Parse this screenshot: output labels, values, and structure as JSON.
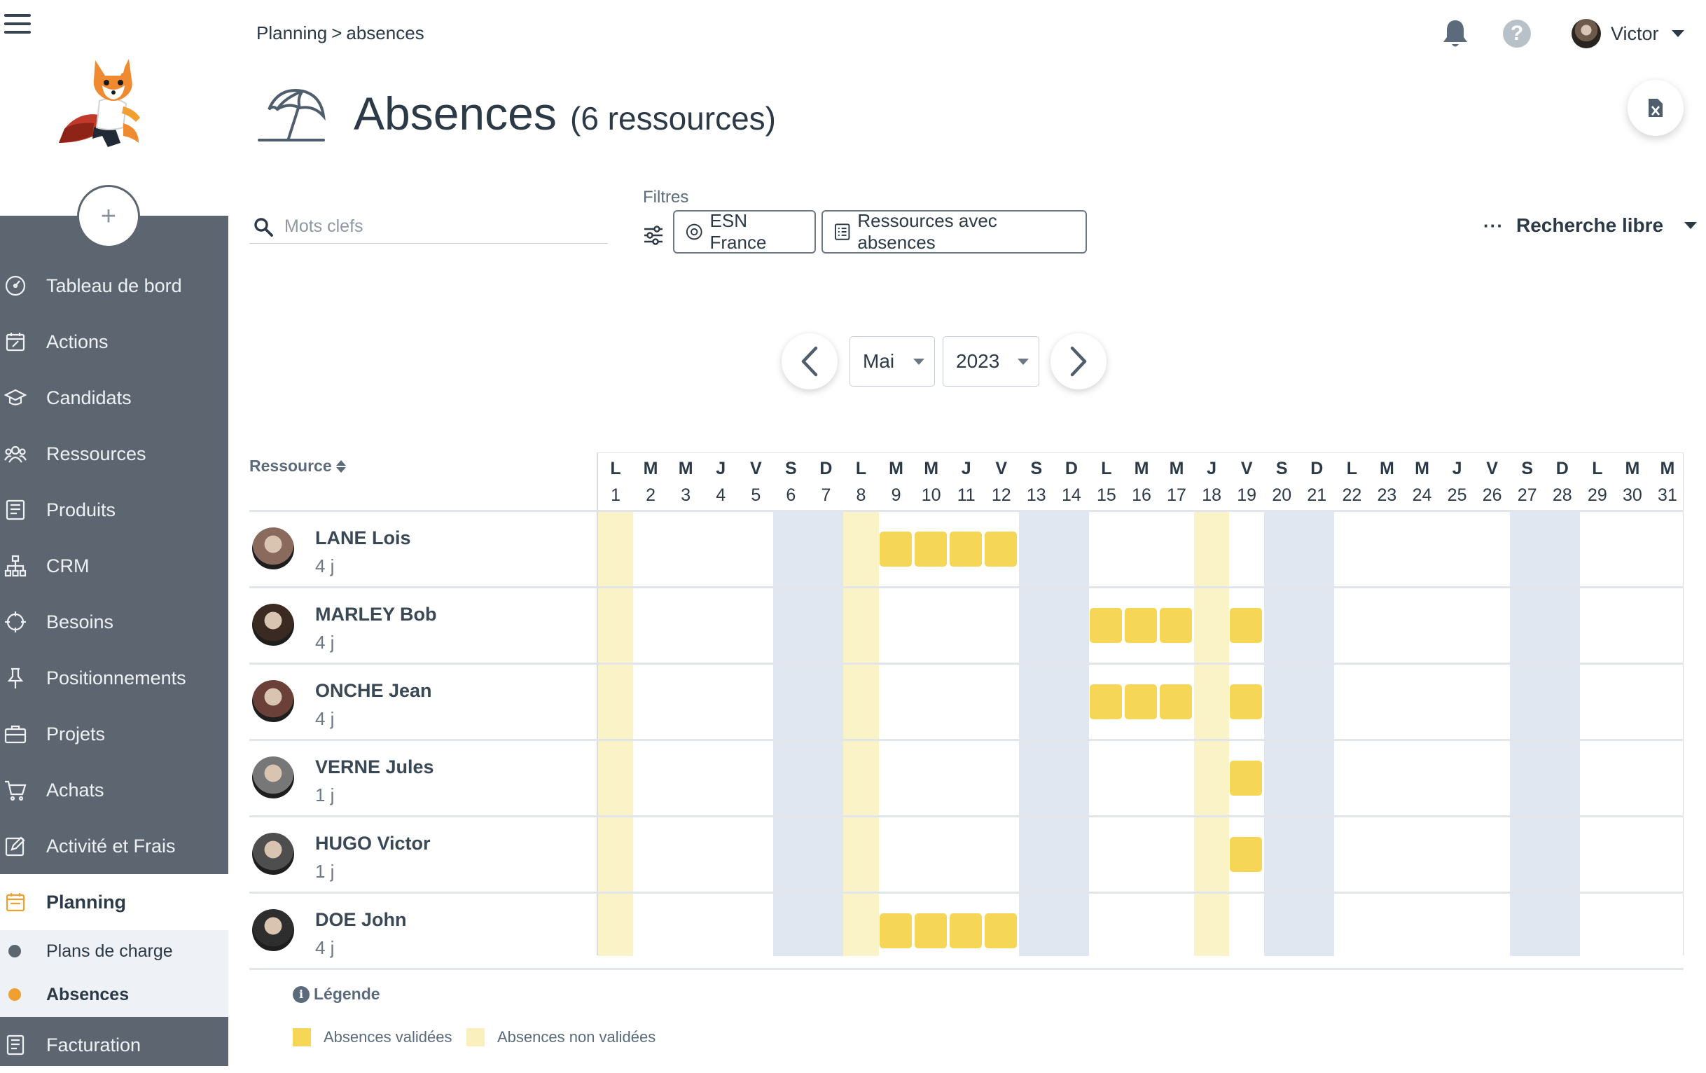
{
  "sidebar": {
    "items": [
      {
        "label": "Tableau de bord",
        "icon": "dashboard-icon"
      },
      {
        "label": "Actions",
        "icon": "calendar-edit-icon"
      },
      {
        "label": "Candidats",
        "icon": "graduation-cap-icon"
      },
      {
        "label": "Ressources",
        "icon": "users-icon"
      },
      {
        "label": "Produits",
        "icon": "book-icon"
      },
      {
        "label": "CRM",
        "icon": "org-chart-icon"
      },
      {
        "label": "Besoins",
        "icon": "crosshair-icon"
      },
      {
        "label": "Positionnements",
        "icon": "pin-icon"
      },
      {
        "label": "Projets",
        "icon": "briefcase-icon"
      },
      {
        "label": "Achats",
        "icon": "cart-icon"
      },
      {
        "label": "Activité et Frais",
        "icon": "edit-icon"
      }
    ],
    "active": {
      "label": "Planning",
      "icon": "planning-icon"
    },
    "subitems": [
      {
        "label": "Plans de charge",
        "dot_color": "#5d6670"
      },
      {
        "label": "Absences",
        "dot_color": "#f0a030"
      }
    ],
    "after": {
      "label": "Facturation",
      "icon": "invoice-icon"
    }
  },
  "header": {
    "breadcrumb": [
      "Planning",
      ">",
      "absences"
    ],
    "user_name": "Victor",
    "help": "?"
  },
  "page": {
    "title": "Absences",
    "subtitle": "(6 ressources)"
  },
  "filters": {
    "search_placeholder": "Mots clefs",
    "label": "Filtres",
    "chips": [
      "ESN France",
      "Ressources avec absences"
    ],
    "free_search_dots": "···",
    "free_search": "Recherche libre"
  },
  "nav": {
    "month": "Mai",
    "year": "2023"
  },
  "calendar": {
    "resource_header": "Ressource",
    "days": [
      {
        "n": "1",
        "l": "L"
      },
      {
        "n": "2",
        "l": "M"
      },
      {
        "n": "3",
        "l": "M"
      },
      {
        "n": "4",
        "l": "J"
      },
      {
        "n": "5",
        "l": "V"
      },
      {
        "n": "6",
        "l": "S"
      },
      {
        "n": "7",
        "l": "D"
      },
      {
        "n": "8",
        "l": "L"
      },
      {
        "n": "9",
        "l": "M"
      },
      {
        "n": "10",
        "l": "M"
      },
      {
        "n": "11",
        "l": "J"
      },
      {
        "n": "12",
        "l": "V"
      },
      {
        "n": "13",
        "l": "S"
      },
      {
        "n": "14",
        "l": "D"
      },
      {
        "n": "15",
        "l": "L"
      },
      {
        "n": "16",
        "l": "M"
      },
      {
        "n": "17",
        "l": "M"
      },
      {
        "n": "18",
        "l": "J"
      },
      {
        "n": "19",
        "l": "V"
      },
      {
        "n": "20",
        "l": "S"
      },
      {
        "n": "21",
        "l": "D"
      },
      {
        "n": "22",
        "l": "L"
      },
      {
        "n": "23",
        "l": "M"
      },
      {
        "n": "24",
        "l": "M"
      },
      {
        "n": "25",
        "l": "J"
      },
      {
        "n": "26",
        "l": "V"
      },
      {
        "n": "27",
        "l": "S"
      },
      {
        "n": "28",
        "l": "D"
      },
      {
        "n": "29",
        "l": "L"
      },
      {
        "n": "30",
        "l": "M"
      },
      {
        "n": "31",
        "l": "M"
      }
    ],
    "holidays": [
      1,
      8,
      18
    ],
    "weekends": [
      6,
      7,
      13,
      14,
      20,
      21,
      27,
      28
    ],
    "resources": [
      {
        "name": "LANE Lois",
        "days": "4 j",
        "absences": [
          9,
          10,
          11,
          12
        ],
        "avatar_color": "#8a6a5c"
      },
      {
        "name": "MARLEY Bob",
        "days": "4 j",
        "absences": [
          15,
          16,
          17,
          19
        ],
        "avatar_color": "#3a2a22"
      },
      {
        "name": "ONCHE Jean",
        "days": "4 j",
        "absences": [
          15,
          16,
          17,
          19
        ],
        "avatar_color": "#6a4038"
      },
      {
        "name": "VERNE Jules",
        "days": "1 j",
        "absences": [
          19
        ],
        "avatar_color": "#777777"
      },
      {
        "name": "HUGO Victor",
        "days": "1 j",
        "absences": [
          19
        ],
        "avatar_color": "#4e4e4e"
      },
      {
        "name": "DOE John",
        "days": "4 j",
        "absences": [
          9,
          10,
          11,
          12
        ],
        "avatar_color": "#2e2e2e"
      }
    ]
  },
  "legend": {
    "title": "Légende",
    "info": "i",
    "items": [
      {
        "label": "Absences validées",
        "color": "#f5d657"
      },
      {
        "label": "Absences non validées",
        "color": "#faf0bd"
      }
    ]
  },
  "colors": {
    "sidebar": "#5d6670",
    "validated": "#f5d657",
    "holiday": "#faf3c7",
    "weekend": "#e1e7f0"
  }
}
